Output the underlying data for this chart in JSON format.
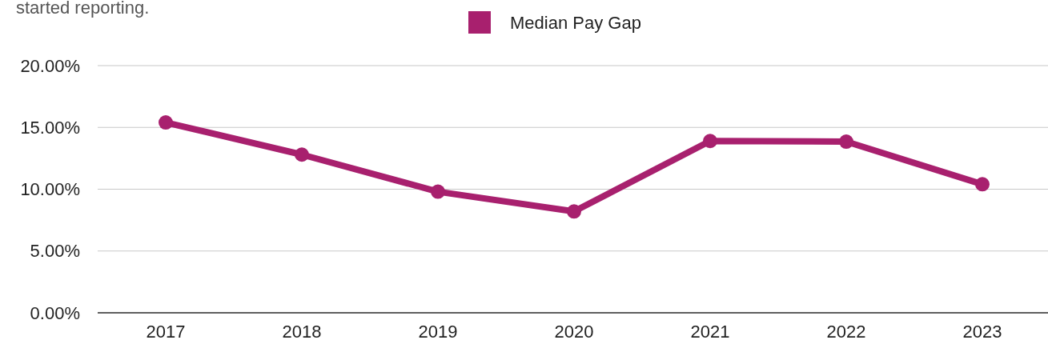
{
  "chart_data": {
    "type": "line",
    "subtitle": "started reporting.",
    "categories": [
      "2017",
      "2018",
      "2019",
      "2020",
      "2021",
      "2022",
      "2023"
    ],
    "series": [
      {
        "name": "Median Pay Gap",
        "color": "#a8206e",
        "values": [
          15.4,
          12.8,
          9.8,
          8.2,
          13.9,
          13.85,
          10.4
        ]
      }
    ],
    "ylim": [
      0,
      20
    ],
    "yticks": [
      {
        "value": 0,
        "label": "0.00%"
      },
      {
        "value": 5,
        "label": "5.00%"
      },
      {
        "value": 10,
        "label": "10.00%"
      },
      {
        "value": 15,
        "label": "15.00%"
      },
      {
        "value": 20,
        "label": "20.00%"
      }
    ],
    "grid": "y",
    "legend": "top",
    "marker": "circle",
    "line_style": "solid"
  }
}
